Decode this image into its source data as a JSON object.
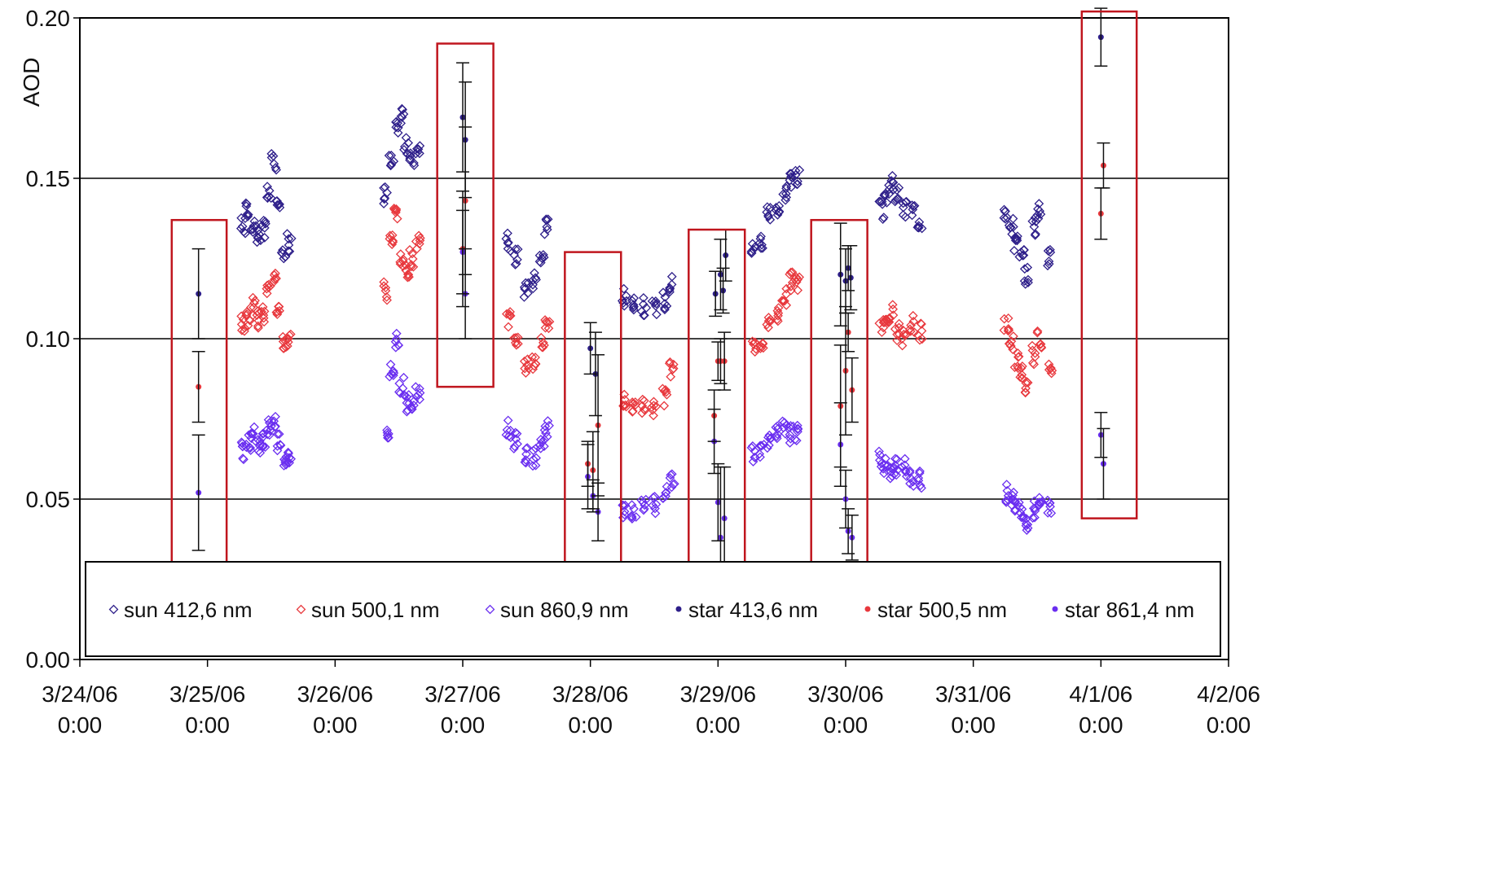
{
  "chart_data": {
    "type": "scatter",
    "title": "",
    "ylabel": "AOD",
    "xlabel": "",
    "ylim": [
      0,
      0.2
    ],
    "yticks": [
      0,
      0.05,
      0.1,
      0.15,
      0.2
    ],
    "ytick_labels": [
      "0.00",
      "0.05",
      "0.10",
      "0.15",
      "0.20"
    ],
    "xlim": [
      0,
      9
    ],
    "xticks": [
      0,
      1,
      2,
      3,
      4,
      5,
      6,
      7,
      8,
      9
    ],
    "xtick_labels": [
      [
        "3/24/06",
        "0:00"
      ],
      [
        "3/25/06",
        "0:00"
      ],
      [
        "3/26/06",
        "0:00"
      ],
      [
        "3/27/06",
        "0:00"
      ],
      [
        "3/28/06",
        "0:00"
      ],
      [
        "3/29/06",
        "0:00"
      ],
      [
        "3/30/06",
        "0:00"
      ],
      [
        "3/31/06",
        "0:00"
      ],
      [
        "4/1/06",
        "0:00"
      ],
      [
        "4/2/06",
        "0:00"
      ]
    ],
    "x_unit_note": "",
    "grid": "horizontal",
    "legend_position": "bottom",
    "series": [
      {
        "name": "sun 412,6 nm",
        "kind": "sun",
        "color": "#2e1f8a",
        "values": [
          [
            1.28,
            0.135
          ],
          [
            1.32,
            0.14
          ],
          [
            1.36,
            0.136
          ],
          [
            1.4,
            0.132
          ],
          [
            1.44,
            0.134
          ],
          [
            1.48,
            0.145
          ],
          [
            1.52,
            0.155
          ],
          [
            1.56,
            0.14
          ],
          [
            1.6,
            0.128
          ],
          [
            1.64,
            0.13
          ],
          [
            2.4,
            0.145
          ],
          [
            2.44,
            0.155
          ],
          [
            2.48,
            0.165
          ],
          [
            2.52,
            0.17
          ],
          [
            2.56,
            0.16
          ],
          [
            2.6,
            0.155
          ],
          [
            2.65,
            0.16
          ],
          [
            3.36,
            0.13
          ],
          [
            3.42,
            0.125
          ],
          [
            3.5,
            0.115
          ],
          [
            3.56,
            0.118
          ],
          [
            3.62,
            0.125
          ],
          [
            3.66,
            0.135
          ],
          [
            4.27,
            0.113
          ],
          [
            4.34,
            0.112
          ],
          [
            4.42,
            0.11
          ],
          [
            4.5,
            0.109
          ],
          [
            4.58,
            0.112
          ],
          [
            4.64,
            0.117
          ],
          [
            5.28,
            0.128
          ],
          [
            5.34,
            0.13
          ],
          [
            5.4,
            0.14
          ],
          [
            5.46,
            0.14
          ],
          [
            5.52,
            0.146
          ],
          [
            5.58,
            0.15
          ],
          [
            5.62,
            0.15
          ],
          [
            6.28,
            0.14
          ],
          [
            6.32,
            0.145
          ],
          [
            6.36,
            0.148
          ],
          [
            6.4,
            0.145
          ],
          [
            6.46,
            0.14
          ],
          [
            6.52,
            0.14
          ],
          [
            6.58,
            0.137
          ],
          [
            7.26,
            0.14
          ],
          [
            7.3,
            0.135
          ],
          [
            7.34,
            0.13
          ],
          [
            7.38,
            0.125
          ],
          [
            7.42,
            0.12
          ],
          [
            7.48,
            0.135
          ],
          [
            7.52,
            0.14
          ],
          [
            7.6,
            0.125
          ]
        ]
      },
      {
        "name": "sun 500,1 nm",
        "kind": "sun",
        "color": "#e8383d",
        "values": [
          [
            1.28,
            0.105
          ],
          [
            1.32,
            0.107
          ],
          [
            1.36,
            0.11
          ],
          [
            1.4,
            0.106
          ],
          [
            1.44,
            0.108
          ],
          [
            1.48,
            0.115
          ],
          [
            1.52,
            0.12
          ],
          [
            1.56,
            0.108
          ],
          [
            1.6,
            0.098
          ],
          [
            1.64,
            0.1
          ],
          [
            2.4,
            0.115
          ],
          [
            2.44,
            0.13
          ],
          [
            2.48,
            0.14
          ],
          [
            2.52,
            0.125
          ],
          [
            2.56,
            0.12
          ],
          [
            2.6,
            0.125
          ],
          [
            2.65,
            0.13
          ],
          [
            3.36,
            0.106
          ],
          [
            3.42,
            0.1
          ],
          [
            3.5,
            0.092
          ],
          [
            3.56,
            0.093
          ],
          [
            3.62,
            0.1
          ],
          [
            3.66,
            0.106
          ],
          [
            4.27,
            0.08
          ],
          [
            4.34,
            0.079
          ],
          [
            4.42,
            0.079
          ],
          [
            4.5,
            0.078
          ],
          [
            4.58,
            0.082
          ],
          [
            4.64,
            0.09
          ],
          [
            5.28,
            0.098
          ],
          [
            5.34,
            0.097
          ],
          [
            5.4,
            0.105
          ],
          [
            5.46,
            0.108
          ],
          [
            5.52,
            0.113
          ],
          [
            5.58,
            0.118
          ],
          [
            5.62,
            0.118
          ],
          [
            6.28,
            0.105
          ],
          [
            6.32,
            0.103
          ],
          [
            6.36,
            0.108
          ],
          [
            6.4,
            0.102
          ],
          [
            6.46,
            0.1
          ],
          [
            6.52,
            0.105
          ],
          [
            6.58,
            0.102
          ],
          [
            7.26,
            0.105
          ],
          [
            7.3,
            0.098
          ],
          [
            7.34,
            0.093
          ],
          [
            7.38,
            0.09
          ],
          [
            7.42,
            0.085
          ],
          [
            7.48,
            0.095
          ],
          [
            7.52,
            0.1
          ],
          [
            7.6,
            0.09
          ]
        ]
      },
      {
        "name": "sun 860,9 nm",
        "kind": "sun",
        "color": "#6a2ef0",
        "values": [
          [
            1.28,
            0.065
          ],
          [
            1.32,
            0.068
          ],
          [
            1.36,
            0.07
          ],
          [
            1.4,
            0.066
          ],
          [
            1.44,
            0.068
          ],
          [
            1.48,
            0.072
          ],
          [
            1.52,
            0.075
          ],
          [
            1.56,
            0.068
          ],
          [
            1.6,
            0.062
          ],
          [
            1.64,
            0.064
          ],
          [
            2.4,
            0.072
          ],
          [
            2.44,
            0.09
          ],
          [
            2.48,
            0.1
          ],
          [
            2.52,
            0.085
          ],
          [
            2.56,
            0.08
          ],
          [
            2.6,
            0.078
          ],
          [
            2.65,
            0.082
          ],
          [
            3.36,
            0.072
          ],
          [
            3.42,
            0.068
          ],
          [
            3.5,
            0.063
          ],
          [
            3.56,
            0.063
          ],
          [
            3.62,
            0.067
          ],
          [
            3.66,
            0.072
          ],
          [
            4.27,
            0.047
          ],
          [
            4.34,
            0.046
          ],
          [
            4.42,
            0.047
          ],
          [
            4.5,
            0.048
          ],
          [
            4.58,
            0.051
          ],
          [
            4.64,
            0.055
          ],
          [
            5.28,
            0.064
          ],
          [
            5.34,
            0.065
          ],
          [
            5.4,
            0.068
          ],
          [
            5.46,
            0.07
          ],
          [
            5.52,
            0.072
          ],
          [
            5.58,
            0.07
          ],
          [
            5.62,
            0.07
          ],
          [
            6.28,
            0.062
          ],
          [
            6.32,
            0.06
          ],
          [
            6.36,
            0.058
          ],
          [
            6.4,
            0.06
          ],
          [
            6.46,
            0.06
          ],
          [
            6.52,
            0.056
          ],
          [
            6.58,
            0.056
          ],
          [
            7.26,
            0.052
          ],
          [
            7.3,
            0.05
          ],
          [
            7.34,
            0.048
          ],
          [
            7.38,
            0.045
          ],
          [
            7.42,
            0.043
          ],
          [
            7.48,
            0.047
          ],
          [
            7.52,
            0.05
          ],
          [
            7.6,
            0.047
          ]
        ]
      },
      {
        "name": "star 413,6 nm",
        "kind": "star",
        "color": "#2e1f8a",
        "values": [
          [
            0.93,
            0.114
          ],
          [
            3.0,
            0.169
          ],
          [
            3.02,
            0.162
          ],
          [
            4.0,
            0.097
          ],
          [
            4.04,
            0.089
          ],
          [
            4.98,
            0.114
          ],
          [
            5.02,
            0.12
          ],
          [
            5.04,
            0.115
          ],
          [
            5.06,
            0.126
          ],
          [
            5.96,
            0.12
          ],
          [
            6.0,
            0.118
          ],
          [
            6.02,
            0.122
          ],
          [
            6.04,
            0.119
          ],
          [
            8.0,
            0.194
          ]
        ]
      },
      {
        "name": "star 500,5 nm",
        "kind": "star",
        "color": "#e8383d",
        "values": [
          [
            0.93,
            0.085
          ],
          [
            3.0,
            0.128
          ],
          [
            3.02,
            0.143
          ],
          [
            3.98,
            0.061
          ],
          [
            4.02,
            0.059
          ],
          [
            4.06,
            0.073
          ],
          [
            4.97,
            0.076
          ],
          [
            5.0,
            0.093
          ],
          [
            5.02,
            0.093
          ],
          [
            5.05,
            0.093
          ],
          [
            5.96,
            0.079
          ],
          [
            6.0,
            0.09
          ],
          [
            6.02,
            0.102
          ],
          [
            6.05,
            0.084
          ],
          [
            8.0,
            0.139
          ],
          [
            8.02,
            0.154
          ]
        ]
      },
      {
        "name": "star 861,4 nm",
        "kind": "star",
        "color": "#6a2ef0",
        "values": [
          [
            0.93,
            0.052
          ],
          [
            3.0,
            0.127
          ],
          [
            3.02,
            0.114
          ],
          [
            3.98,
            0.057
          ],
          [
            4.02,
            0.051
          ],
          [
            4.06,
            0.046
          ],
          [
            4.97,
            0.068
          ],
          [
            5.0,
            0.049
          ],
          [
            5.02,
            0.038
          ],
          [
            5.05,
            0.044
          ],
          [
            5.96,
            0.067
          ],
          [
            6.0,
            0.05
          ],
          [
            6.02,
            0.04
          ],
          [
            6.05,
            0.038
          ],
          [
            8.0,
            0.07
          ],
          [
            8.02,
            0.061
          ]
        ]
      }
    ],
    "error_bars": [
      {
        "x": 0.93,
        "y": 0.114,
        "err": 0.014
      },
      {
        "x": 0.93,
        "y": 0.085,
        "err": 0.011
      },
      {
        "x": 0.93,
        "y": 0.052,
        "err": 0.018
      },
      {
        "x": 3.0,
        "y": 0.169,
        "err": 0.017
      },
      {
        "x": 3.02,
        "y": 0.162,
        "err": 0.018
      },
      {
        "x": 3.0,
        "y": 0.128,
        "err": 0.018
      },
      {
        "x": 3.02,
        "y": 0.143,
        "err": 0.023
      },
      {
        "x": 3.0,
        "y": 0.127,
        "err": 0.013
      },
      {
        "x": 3.02,
        "y": 0.114,
        "err": 0.014
      },
      {
        "x": 4.0,
        "y": 0.097,
        "err": 0.008
      },
      {
        "x": 4.04,
        "y": 0.089,
        "err": 0.013
      },
      {
        "x": 3.98,
        "y": 0.061,
        "err": 0.007
      },
      {
        "x": 4.02,
        "y": 0.059,
        "err": 0.012
      },
      {
        "x": 4.06,
        "y": 0.073,
        "err": 0.022
      },
      {
        "x": 3.98,
        "y": 0.057,
        "err": 0.01
      },
      {
        "x": 4.02,
        "y": 0.051,
        "err": 0.005
      },
      {
        "x": 4.06,
        "y": 0.046,
        "err": 0.009
      },
      {
        "x": 4.98,
        "y": 0.114,
        "err": 0.007
      },
      {
        "x": 5.02,
        "y": 0.12,
        "err": 0.011
      },
      {
        "x": 5.04,
        "y": 0.115,
        "err": 0.007
      },
      {
        "x": 5.06,
        "y": 0.126,
        "err": 0.008
      },
      {
        "x": 4.97,
        "y": 0.076,
        "err": 0.008
      },
      {
        "x": 5.0,
        "y": 0.093,
        "err": 0.006
      },
      {
        "x": 5.02,
        "y": 0.093,
        "err": 0.007
      },
      {
        "x": 5.05,
        "y": 0.093,
        "err": 0.009
      },
      {
        "x": 4.97,
        "y": 0.068,
        "err": 0.01
      },
      {
        "x": 5.0,
        "y": 0.049,
        "err": 0.012
      },
      {
        "x": 5.02,
        "y": 0.038,
        "err": 0.022
      },
      {
        "x": 5.05,
        "y": 0.044,
        "err": 0.016
      },
      {
        "x": 5.96,
        "y": 0.12,
        "err": 0.016
      },
      {
        "x": 6.0,
        "y": 0.118,
        "err": 0.01
      },
      {
        "x": 6.02,
        "y": 0.122,
        "err": 0.007
      },
      {
        "x": 6.04,
        "y": 0.119,
        "err": 0.01
      },
      {
        "x": 5.96,
        "y": 0.079,
        "err": 0.019
      },
      {
        "x": 6.0,
        "y": 0.09,
        "err": 0.02
      },
      {
        "x": 6.02,
        "y": 0.102,
        "err": 0.006
      },
      {
        "x": 6.05,
        "y": 0.084,
        "err": 0.01
      },
      {
        "x": 5.96,
        "y": 0.067,
        "err": 0.013
      },
      {
        "x": 6.0,
        "y": 0.05,
        "err": 0.009
      },
      {
        "x": 6.02,
        "y": 0.04,
        "err": 0.007
      },
      {
        "x": 6.05,
        "y": 0.038,
        "err": 0.007
      },
      {
        "x": 8.0,
        "y": 0.194,
        "err": 0.009
      },
      {
        "x": 8.0,
        "y": 0.139,
        "err": 0.008
      },
      {
        "x": 8.02,
        "y": 0.154,
        "err": 0.007
      },
      {
        "x": 8.0,
        "y": 0.07,
        "err": 0.007
      },
      {
        "x": 8.02,
        "y": 0.061,
        "err": 0.011
      }
    ],
    "highlight_boxes": [
      {
        "x0": 0.72,
        "x1": 1.15,
        "y0": 0.03,
        "y1": 0.137
      },
      {
        "x0": 2.8,
        "x1": 3.24,
        "y0": 0.085,
        "y1": 0.192
      },
      {
        "x0": 3.8,
        "x1": 4.24,
        "y0": 0.02,
        "y1": 0.127
      },
      {
        "x0": 4.77,
        "x1": 5.21,
        "y0": 0.027,
        "y1": 0.134
      },
      {
        "x0": 5.73,
        "x1": 6.17,
        "y0": 0.03,
        "y1": 0.137
      },
      {
        "x0": 7.85,
        "x1": 8.28,
        "y0": 0.044,
        "y1": 0.202
      }
    ]
  }
}
